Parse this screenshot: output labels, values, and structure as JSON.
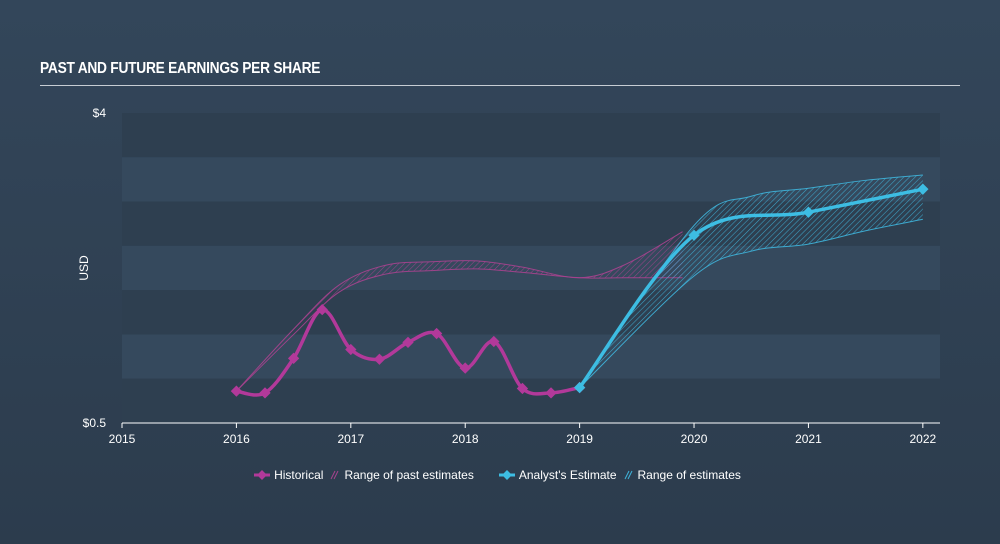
{
  "title": "PAST AND FUTURE EARNINGS PER SHARE",
  "legend": {
    "historical": "Historical",
    "past_range": "Range of past estimates",
    "analyst": "Analyst's Estimate",
    "future_range": "Range of estimates"
  },
  "colors": {
    "historical": "#b2399a",
    "past_range": "#a8428f",
    "analyst": "#3dbde3",
    "future_range": "#3fb5dc",
    "background": "#33465a",
    "axis": "#ffffff"
  },
  "chart_data": {
    "type": "line",
    "ylabel": "USD",
    "ylim": [
      0.5,
      4
    ],
    "xlim": [
      2015,
      2022.15
    ],
    "y_tick_labels": [
      "$4",
      "$0.5"
    ],
    "y_tick_values": [
      4,
      0.5
    ],
    "x_ticks": [
      2015,
      2016,
      2017,
      2018,
      2019,
      2020,
      2021,
      2022
    ],
    "x_tick_labels": [
      "2015",
      "2016",
      "2017",
      "2018",
      "2019",
      "2020",
      "2021",
      "2022"
    ],
    "series": [
      {
        "name": "Historical",
        "x": [
          2016.0,
          2016.25,
          2016.5,
          2016.75,
          2017.0,
          2017.25,
          2017.5,
          2017.75,
          2018.0,
          2018.25,
          2018.5,
          2018.75,
          2019.0
        ],
        "y": [
          0.86,
          0.84,
          1.23,
          1.78,
          1.33,
          1.22,
          1.41,
          1.51,
          1.12,
          1.42,
          0.89,
          0.84,
          0.9
        ]
      },
      {
        "name": "Range of past estimates",
        "type": "band",
        "x": [
          2016.0,
          2016.5,
          2016.9,
          2017.3,
          2017.7,
          2018.1,
          2018.5,
          2019.0,
          2019.4,
          2019.9
        ],
        "low": [
          0.86,
          1.5,
          1.98,
          2.18,
          2.22,
          2.24,
          2.2,
          2.14,
          2.14,
          2.14
        ],
        "high": [
          0.86,
          1.56,
          2.06,
          2.28,
          2.32,
          2.33,
          2.26,
          2.14,
          2.29,
          2.66
        ]
      },
      {
        "name": "Analyst's Estimate",
        "x": [
          2019.0,
          2020.0,
          2021.0,
          2022.0
        ],
        "y": [
          0.9,
          2.62,
          2.88,
          3.14
        ]
      },
      {
        "name": "Range of estimates",
        "type": "band",
        "x": [
          2019.0,
          2020.0,
          2020.5,
          2021.0,
          2021.5,
          2022.0
        ],
        "low": [
          0.9,
          2.16,
          2.44,
          2.52,
          2.67,
          2.8
        ],
        "high": [
          0.9,
          2.73,
          3.06,
          3.15,
          3.24,
          3.3
        ]
      }
    ]
  }
}
